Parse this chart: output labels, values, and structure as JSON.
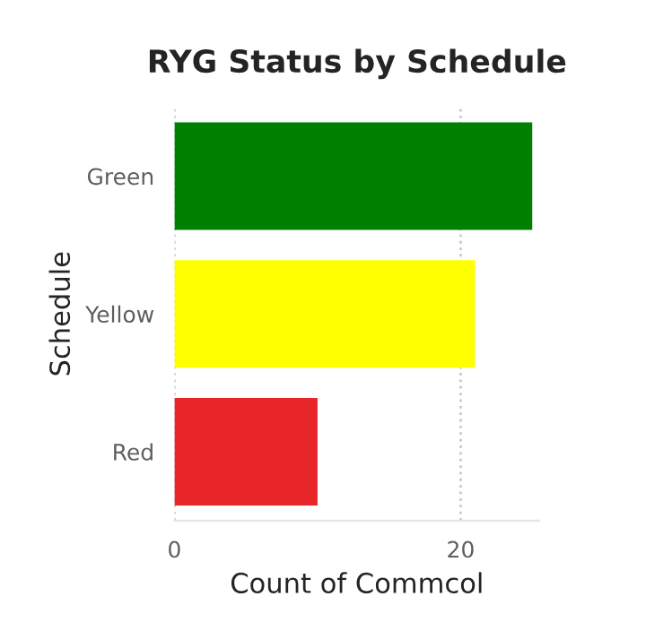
{
  "chart_data": {
    "type": "bar",
    "orientation": "horizontal",
    "title": "RYG Status by Schedule",
    "xlabel": "Count of Commcol",
    "ylabel": "Schedule",
    "categories": [
      "Green",
      "Yellow",
      "Red"
    ],
    "values": [
      25,
      21,
      10
    ],
    "colors": [
      "#008000",
      "#ffff00",
      "#e8262a"
    ],
    "xlim": [
      0,
      25.5
    ],
    "xticks": [
      0,
      20
    ],
    "grid": "x",
    "legend": false
  }
}
